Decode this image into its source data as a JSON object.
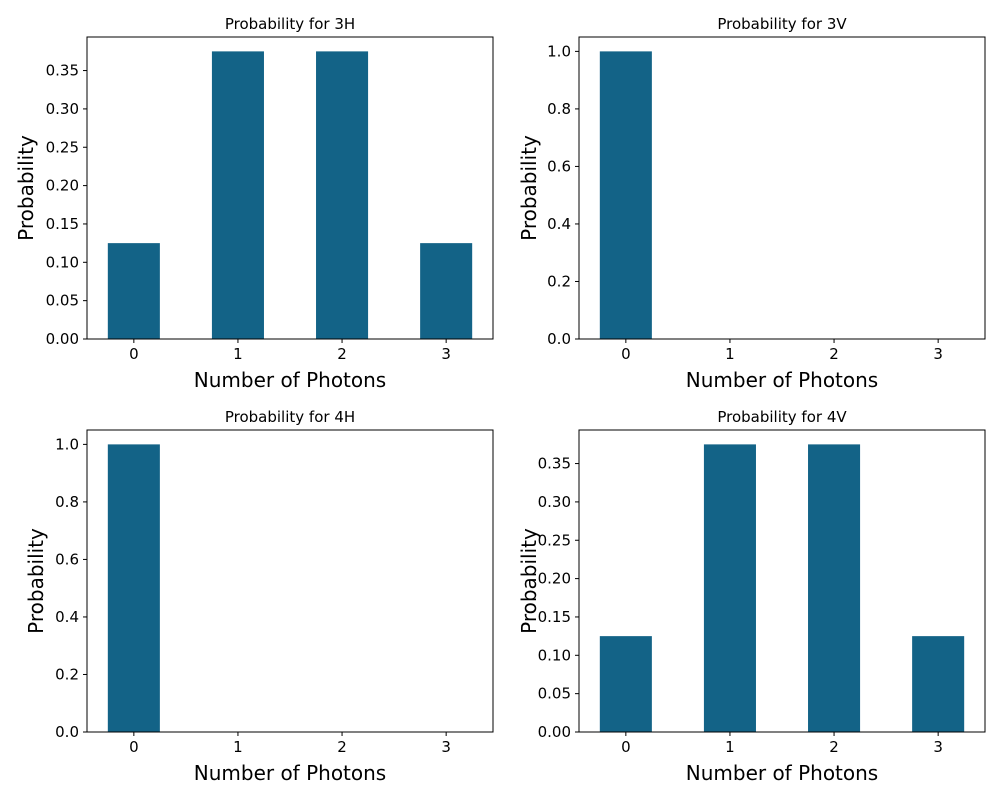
{
  "colors": {
    "bar": "#136387",
    "axis": "#000000",
    "background": "#ffffff"
  },
  "chart_data": [
    {
      "type": "bar",
      "title": "Probability for 3H",
      "xlabel": "Number of Photons",
      "ylabel": "Probability",
      "categories": [
        "0",
        "1",
        "2",
        "3"
      ],
      "values": [
        0.125,
        0.375,
        0.375,
        0.125
      ],
      "ylim": [
        0,
        0.39375
      ],
      "yticks": [
        "0.00",
        "0.05",
        "0.10",
        "0.15",
        "0.20",
        "0.25",
        "0.30",
        "0.35"
      ],
      "grid": false
    },
    {
      "type": "bar",
      "title": "Probability for 3V",
      "xlabel": "Number of Photons",
      "ylabel": "Probability",
      "categories": [
        "0",
        "1",
        "2",
        "3"
      ],
      "values": [
        1.0,
        0.0,
        0.0,
        0.0
      ],
      "ylim": [
        0,
        1.05
      ],
      "yticks": [
        "0.0",
        "0.2",
        "0.4",
        "0.6",
        "0.8",
        "1.0"
      ],
      "grid": false
    },
    {
      "type": "bar",
      "title": "Probability for 4H",
      "xlabel": "Number of Photons",
      "ylabel": "Probability",
      "categories": [
        "0",
        "1",
        "2",
        "3"
      ],
      "values": [
        1.0,
        0.0,
        0.0,
        0.0
      ],
      "ylim": [
        0,
        1.05
      ],
      "yticks": [
        "0.0",
        "0.2",
        "0.4",
        "0.6",
        "0.8",
        "1.0"
      ],
      "grid": false
    },
    {
      "type": "bar",
      "title": "Probability for 4V",
      "xlabel": "Number of Photons",
      "ylabel": "Probability",
      "categories": [
        "0",
        "1",
        "2",
        "3"
      ],
      "values": [
        0.125,
        0.375,
        0.375,
        0.125
      ],
      "ylim": [
        0,
        0.39375
      ],
      "yticks": [
        "0.00",
        "0.05",
        "0.10",
        "0.15",
        "0.20",
        "0.25",
        "0.30",
        "0.35"
      ],
      "grid": false
    }
  ]
}
